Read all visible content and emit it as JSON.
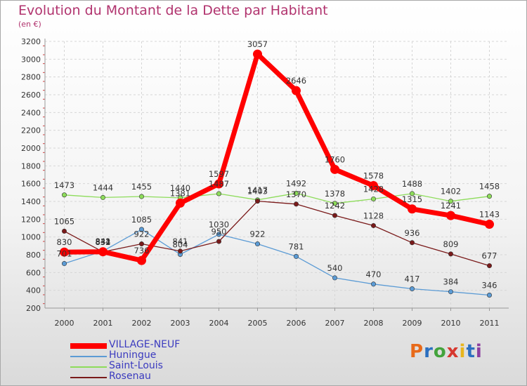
{
  "title": "Evolution du Montant de la Dette par Habitant",
  "subtitle": "(en €)",
  "logo": {
    "text": "Proxiti",
    "colors": [
      "#e86a1a",
      "#2b6fc0",
      "#43a33c",
      "#d6382f",
      "#e8b51d",
      "#2b6fc0",
      "#8c3fa0"
    ]
  },
  "chart_data": {
    "type": "line",
    "title": "Evolution du Montant de la Dette par Habitant",
    "ylabel": "(en €)",
    "xlabel": "",
    "ylim": [
      200,
      3200
    ],
    "y_ticks": [
      200,
      400,
      600,
      800,
      1000,
      1200,
      1400,
      1600,
      1800,
      2000,
      2200,
      2400,
      2600,
      2800,
      3000,
      3200
    ],
    "x": [
      "2000",
      "2001",
      "2002",
      "2003",
      "2004",
      "2005",
      "2006",
      "2007",
      "2008",
      "2009",
      "2010",
      "2011"
    ],
    "grid": true,
    "legend_position": "bottom-left",
    "series": [
      {
        "name": "VILLAGE-NEUF",
        "color": "#ff0000",
        "values": [
          830,
          834,
          736,
          1381,
          1597,
          3057,
          2646,
          1760,
          1578,
          1315,
          1241,
          1143
        ]
      },
      {
        "name": "Huningue",
        "color": "#5b9bd5",
        "values": [
          701,
          841,
          1085,
          804,
          1030,
          922,
          781,
          540,
          470,
          417,
          384,
          346
        ]
      },
      {
        "name": "Saint-Louis",
        "color": "#8ddc5a",
        "values": [
          1473,
          1444,
          1455,
          1440,
          1487,
          1417,
          1492,
          1378,
          1428,
          1488,
          1402,
          1458
        ]
      },
      {
        "name": "Rosenau",
        "color": "#7a1a1a",
        "values": [
          1065,
          832,
          922,
          841,
          950,
          1403,
          1370,
          1242,
          1128,
          936,
          809,
          677
        ]
      }
    ]
  }
}
